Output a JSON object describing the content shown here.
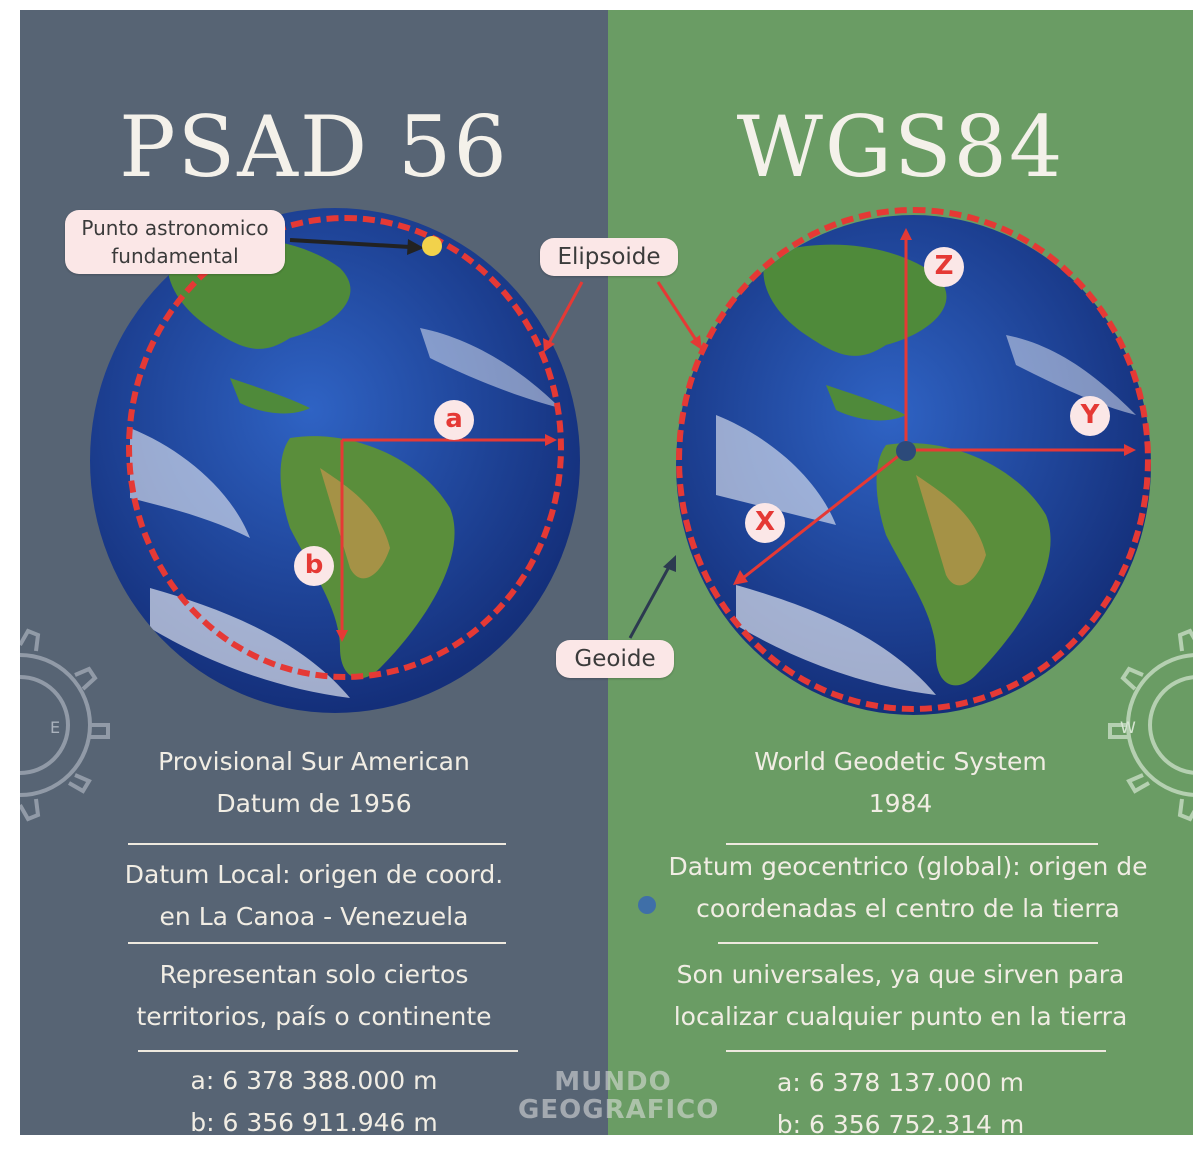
{
  "left": {
    "title": "PSAD 56",
    "callout_point": [
      "Punto astronomico",
      "fundamental"
    ],
    "axis_a": "a",
    "axis_b": "b",
    "gear_letter": "E",
    "name_lines": [
      "Provisional Sur American",
      "Datum de 1956"
    ],
    "datum_lines": [
      "Datum Local: origen de coord.",
      "en La Canoa - Venezuela"
    ],
    "scope_lines": [
      "Representan solo ciertos",
      "territorios, país o continente"
    ],
    "values": [
      "a: 6 378 388.000 m",
      "b: 6 356 911.946 m"
    ]
  },
  "right": {
    "title": "WGS84",
    "axis_x": "X",
    "axis_y": "Y",
    "axis_z": "Z",
    "gear_letter": "W",
    "name_lines": [
      "World Geodetic System",
      "1984"
    ],
    "datum_lines": [
      "Datum geocentrico (global): origen de",
      "coordenadas el centro de la tierra"
    ],
    "scope_lines": [
      "Son universales, ya que sirven para",
      "localizar cualquier punto en la tierra"
    ],
    "values": [
      "a: 6 378 137.000 m",
      "b: 6 356 752.314 m"
    ]
  },
  "callouts": {
    "elipsoide": "Elipsoide",
    "geoide": "Geoide"
  },
  "watermark": [
    "MUNDO",
    "GEOGRAFICO"
  ],
  "colors": {
    "left_bg": "#576474",
    "right_bg": "#6a9c64",
    "ellipsoid_red": "#e53935",
    "ocean_blue": "#1f4aa8",
    "land_green": "#4f8a3a",
    "callout_bg": "#fbe7e7"
  }
}
